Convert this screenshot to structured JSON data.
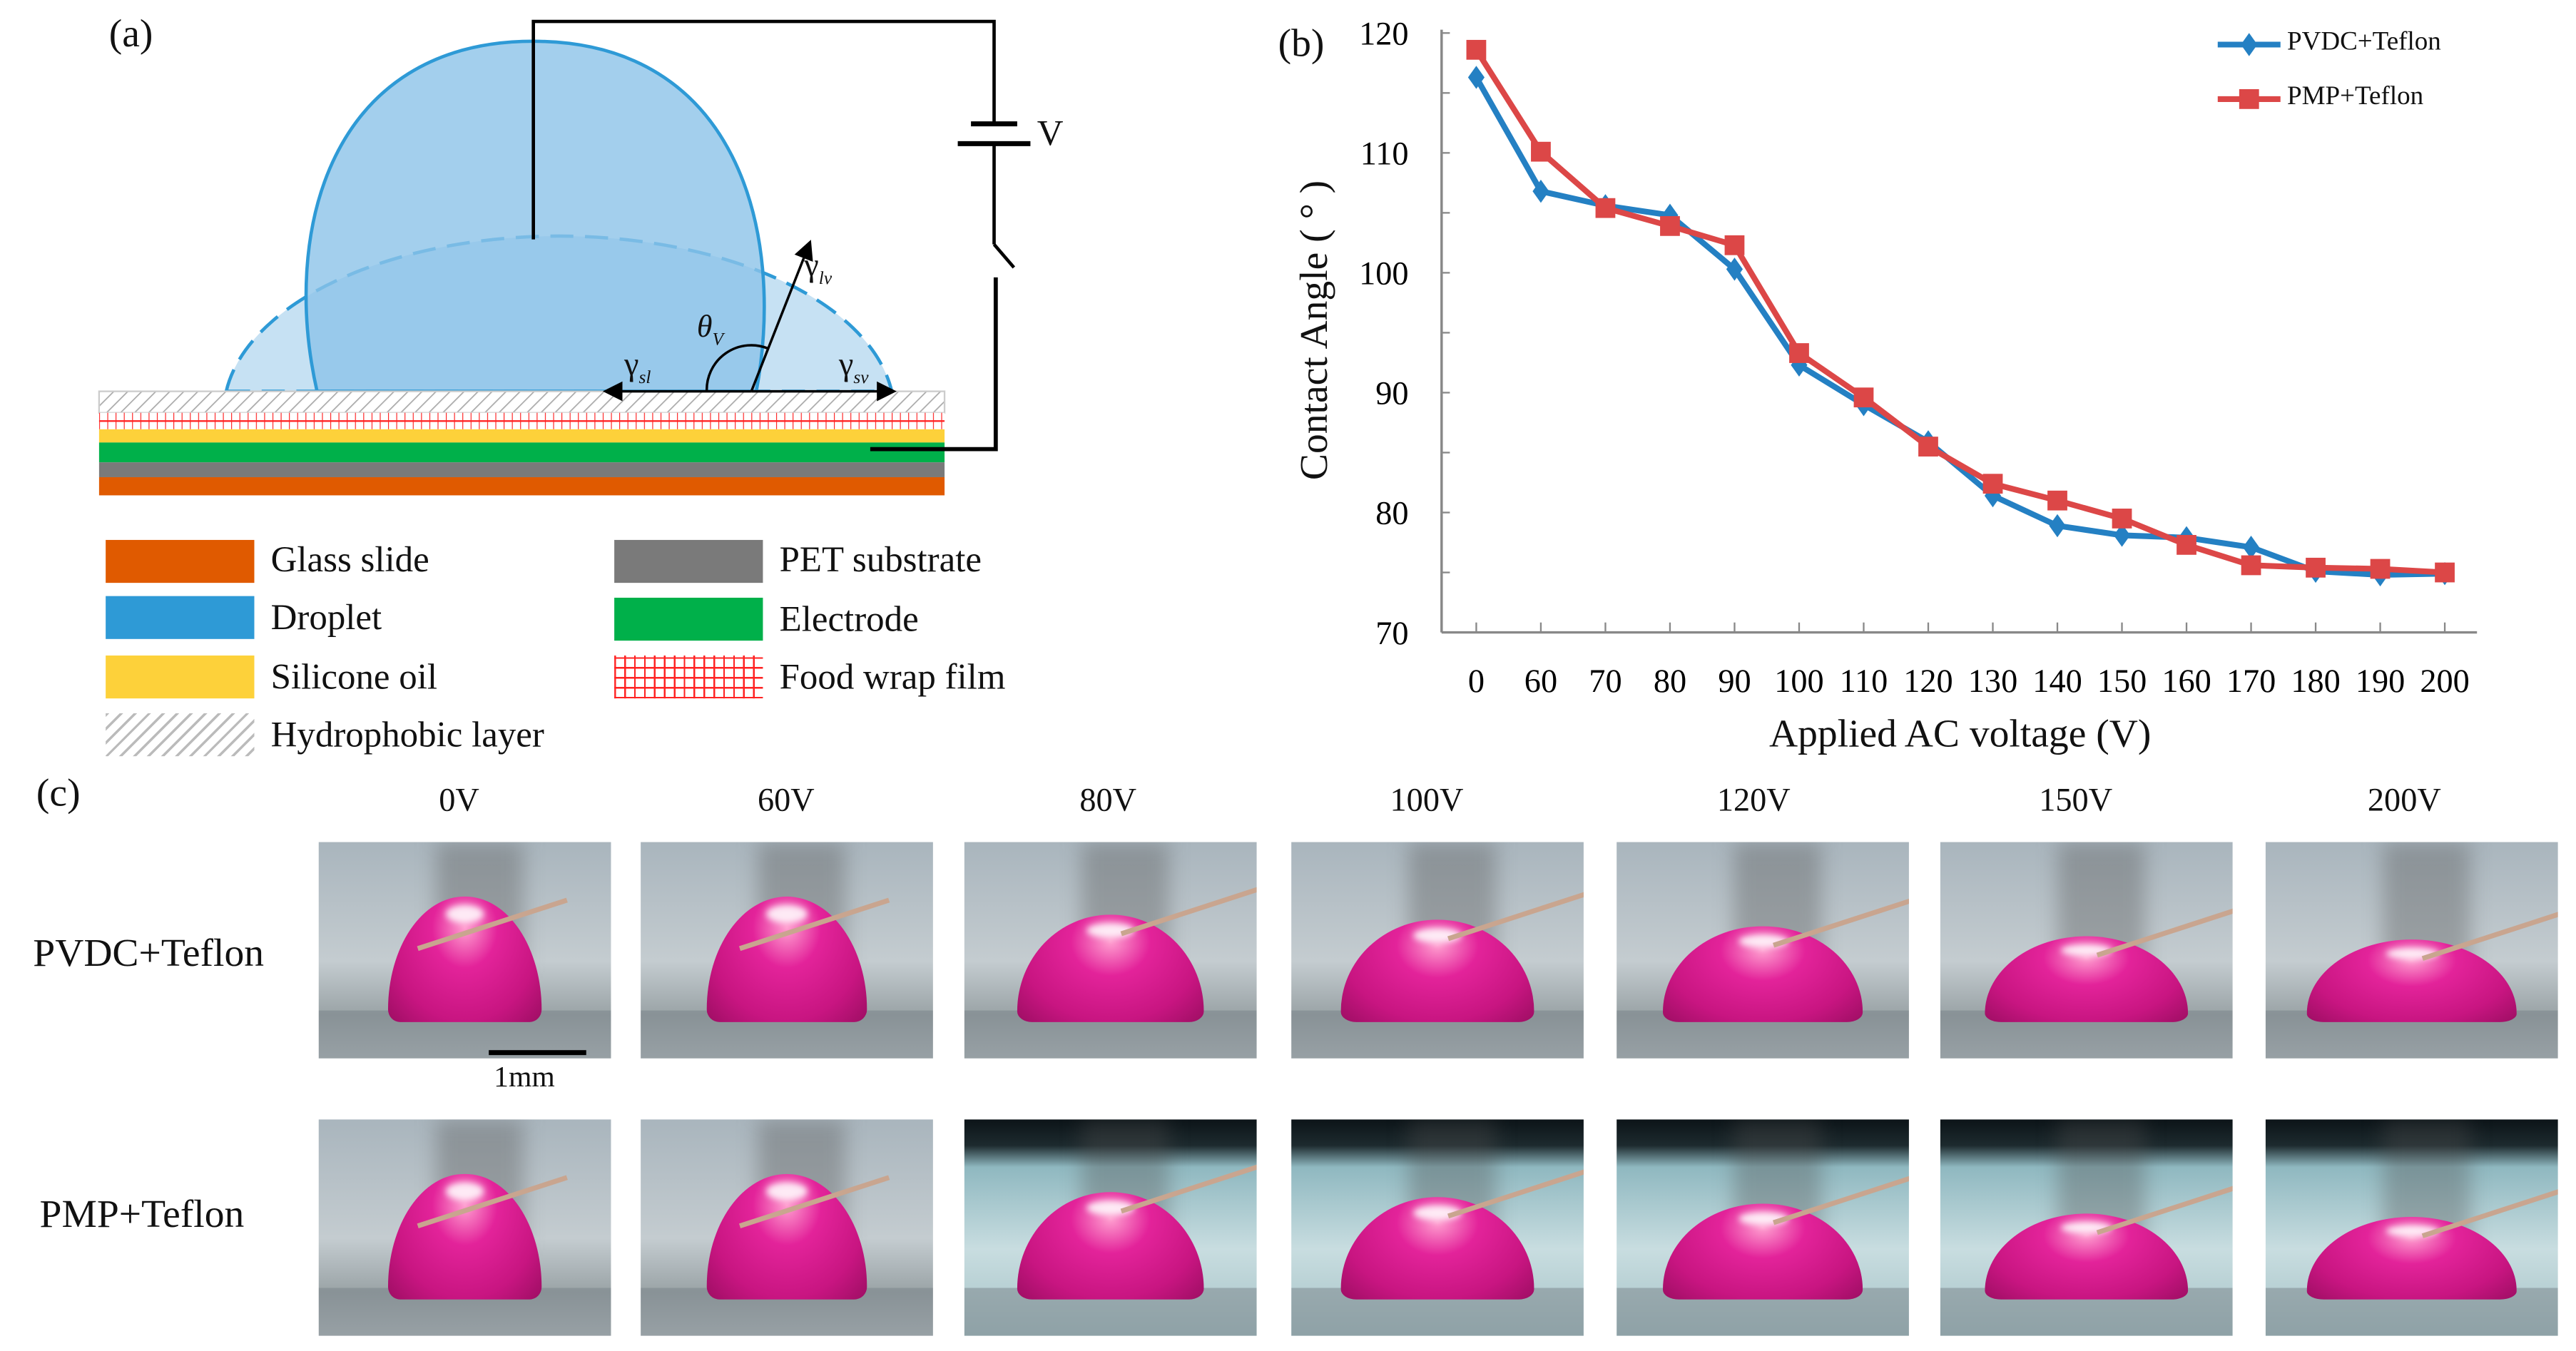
{
  "panel_a": {
    "label": "(a)",
    "voltage_label": "V",
    "symbols": {
      "gamma": "γ",
      "lv": "lv",
      "sl": "sl",
      "sv": "sv",
      "theta": "θ",
      "v": "V"
    },
    "legend": [
      {
        "label": "Glass slide",
        "color": "#e05a00"
      },
      {
        "label": "PET substrate",
        "color": "#7a7a7a"
      },
      {
        "label": "Droplet",
        "color": "#2e9ad6"
      },
      {
        "label": "Electrode",
        "color": "#00b04a"
      },
      {
        "label": "Silicone oil",
        "color": "#fdd13a"
      },
      {
        "label": "Food wrap film",
        "color": "#ff2020"
      },
      {
        "label": "Hydrophobic layer",
        "color": "#bdbdbd"
      }
    ]
  },
  "chart_data": {
    "type": "line",
    "panel_label": "(b)",
    "title": "",
    "xlabel": "Applied AC voltage (V)",
    "ylabel": "Contact Angle ( ° )",
    "categories": [
      "0",
      "60",
      "70",
      "80",
      "90",
      "100",
      "110",
      "120",
      "130",
      "140",
      "150",
      "160",
      "170",
      "180",
      "190",
      "200"
    ],
    "yticks": [
      120,
      110,
      100,
      90,
      80,
      70
    ],
    "ylim": [
      70,
      120
    ],
    "legend_position": "top-right",
    "series": [
      {
        "name": "PVDC+Teflon",
        "color": "#2480c3",
        "marker": "diamond",
        "values": [
          116.3,
          106.8,
          105.6,
          104.8,
          100.3,
          92.3,
          89.0,
          85.9,
          81.4,
          78.9,
          78.1,
          77.9,
          77.1,
          75.1,
          74.8,
          74.9
        ]
      },
      {
        "name": "PMP+Teflon",
        "color": "#dc4747",
        "marker": "square",
        "values": [
          118.6,
          110.1,
          105.4,
          103.9,
          102.3,
          93.3,
          89.6,
          85.5,
          82.4,
          81.0,
          79.5,
          77.3,
          75.6,
          75.4,
          75.3,
          75.0
        ]
      }
    ]
  },
  "panel_c": {
    "label": "(c)",
    "columns": [
      "0V",
      "60V",
      "80V",
      "100V",
      "120V",
      "150V",
      "200V"
    ],
    "rows": [
      "PVDC+Teflon",
      "PMP+Teflon"
    ],
    "scale_bar": "1mm"
  }
}
